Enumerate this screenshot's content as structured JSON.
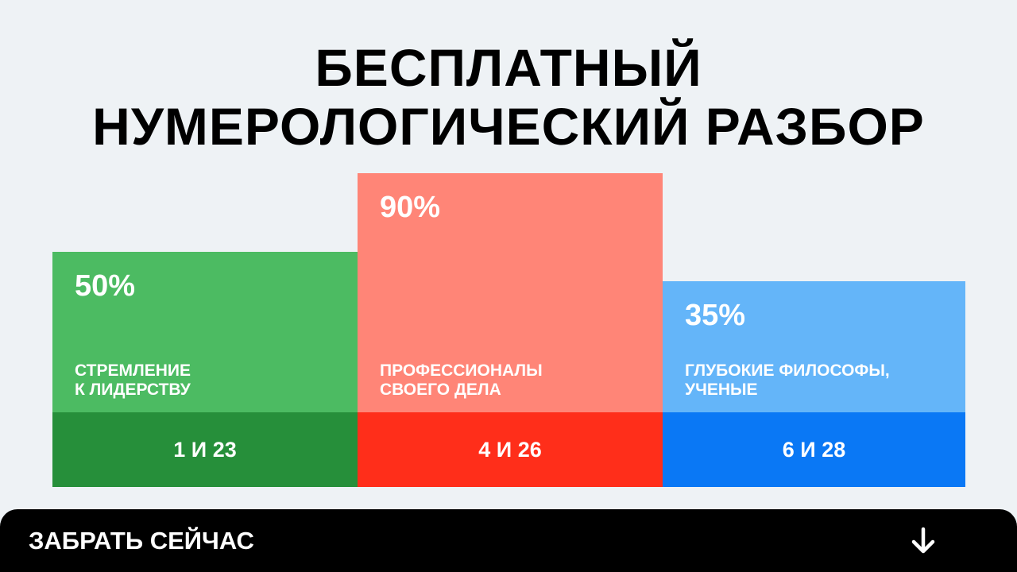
{
  "chart_data": {
    "type": "bar",
    "title": "БЕСПЛАТНЫЙ\nНУМЕРОЛОГИЧЕСКИЙ РАЗБОР",
    "categories": [
      "СТРЕМЛЕНИЕ\nК ЛИДЕРСТВУ",
      "ПРОФЕССИОНАЛЫ\nСВОЕГО ДЕЛА",
      "ГЛУБОКИЕ ФИЛОСОФЫ,\nУЧЕНЫЕ"
    ],
    "values": [
      50,
      90,
      35
    ],
    "value_labels": [
      "50%",
      "90%",
      "35%"
    ],
    "numbers": [
      "1 И 23",
      "4 И 26",
      "6 И 28"
    ],
    "colors": [
      "#4cbb62",
      "#ff8577",
      "#64b5f9"
    ],
    "base_colors": [
      "#268f3a",
      "#ff2e1a",
      "#0a78f5"
    ]
  },
  "button": {
    "label": "ЗАБРАТЬ СЕЙЧАС"
  }
}
